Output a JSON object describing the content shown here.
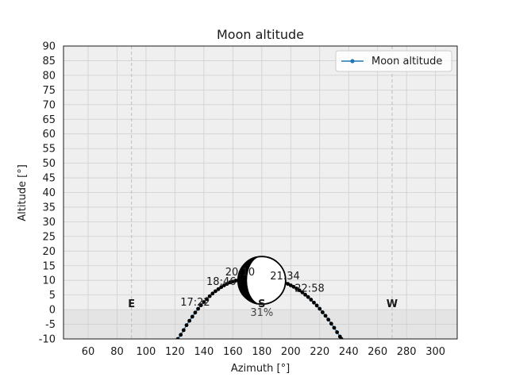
{
  "chart_data": {
    "type": "line",
    "title": "Moon altitude",
    "xlabel": "Azimuth [°]",
    "ylabel": "Altitude [°]",
    "xlim": [
      43,
      315
    ],
    "ylim": [
      -10,
      90
    ],
    "xticks": [
      60,
      80,
      100,
      120,
      140,
      160,
      180,
      200,
      220,
      240,
      260,
      280,
      300
    ],
    "yticks": [
      -10,
      -5,
      0,
      5,
      10,
      15,
      20,
      25,
      30,
      35,
      40,
      45,
      50,
      55,
      60,
      65,
      70,
      75,
      80,
      85,
      90
    ],
    "grid": true,
    "legend": {
      "position": "top-right",
      "entries": [
        "Moon altitude"
      ]
    },
    "series": [
      {
        "name": "Moon altitude",
        "color": "#1f77b4",
        "points": [
          [
            122,
            -10.0
          ],
          [
            124,
            -8.6
          ],
          [
            126,
            -7.0
          ],
          [
            128,
            -5.3
          ],
          [
            130,
            -3.8
          ],
          [
            132,
            -2.4
          ],
          [
            134,
            -1.0
          ],
          [
            136,
            0.3
          ],
          [
            138,
            1.5
          ],
          [
            140,
            2.6
          ],
          [
            142,
            3.6
          ],
          [
            144,
            4.6
          ],
          [
            146,
            5.5
          ],
          [
            148,
            6.3
          ],
          [
            150,
            7.0
          ],
          [
            152,
            7.7
          ],
          [
            154,
            8.3
          ],
          [
            156,
            8.8
          ],
          [
            158,
            9.3
          ],
          [
            160,
            9.6
          ],
          [
            162,
            9.9
          ],
          [
            164,
            10.1
          ],
          [
            166,
            10.3
          ],
          [
            168,
            10.4
          ],
          [
            170,
            10.5
          ],
          [
            172,
            10.5
          ],
          [
            174,
            10.6
          ],
          [
            176,
            10.6
          ],
          [
            178,
            10.6
          ],
          [
            180,
            10.6
          ],
          [
            182,
            10.6
          ],
          [
            184,
            10.5
          ],
          [
            186,
            10.4
          ],
          [
            188,
            10.3
          ],
          [
            190,
            10.1
          ],
          [
            192,
            9.9
          ],
          [
            194,
            9.6
          ],
          [
            196,
            9.2
          ],
          [
            198,
            8.8
          ],
          [
            200,
            8.3
          ],
          [
            202,
            7.8
          ],
          [
            204,
            7.2
          ],
          [
            206,
            6.6
          ],
          [
            208,
            5.9
          ],
          [
            210,
            5.1
          ],
          [
            212,
            4.3
          ],
          [
            214,
            3.4
          ],
          [
            216,
            2.4
          ],
          [
            218,
            1.4
          ],
          [
            220,
            0.3
          ],
          [
            222,
            -0.9
          ],
          [
            224,
            -2.1
          ],
          [
            226,
            -3.4
          ],
          [
            228,
            -4.8
          ],
          [
            230,
            -6.2
          ],
          [
            232,
            -7.7
          ],
          [
            234,
            -9.2
          ],
          [
            235,
            -10.0
          ]
        ]
      }
    ],
    "time_labels": [
      {
        "text": "17:22",
        "x": 134,
        "y": 2.6
      },
      {
        "text": "18:46",
        "x": 152,
        "y": 9.7
      },
      {
        "text": "20:10",
        "x": 165,
        "y": 12.9
      },
      {
        "text": "21:34",
        "x": 196,
        "y": 11.5
      },
      {
        "text": "22:58",
        "x": 213,
        "y": 7.3
      }
    ],
    "compass_labels": [
      {
        "text": "E",
        "x": 90
      },
      {
        "text": "S",
        "x": 180
      },
      {
        "text": "W",
        "x": 270
      }
    ],
    "moon": {
      "azimuth": 180,
      "altitude": 10,
      "illumination_label": "31%"
    },
    "colors": {
      "plot_background": "#efefef",
      "below_horizon": "#e4e4e4",
      "grid": "#cfcfcf",
      "markers": "#000000"
    }
  }
}
